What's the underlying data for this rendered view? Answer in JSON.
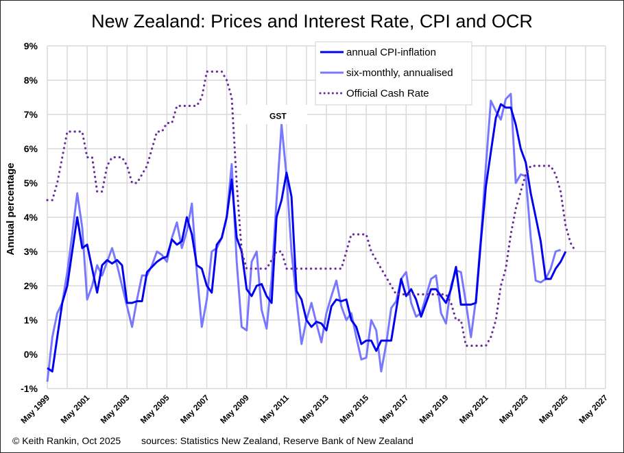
{
  "chart_data": {
    "type": "line",
    "title": "New Zealand: Prices and Interest Rate, CPI and OCR",
    "xlabel": "",
    "ylabel": "Annual percentage",
    "ylim": [
      -1,
      9
    ],
    "xlim": [
      "May 1999",
      "May 2027"
    ],
    "grid": true,
    "legend_position": "top-center",
    "y_ticks": [
      "-1%",
      "0%",
      "1%",
      "2%",
      "3%",
      "4%",
      "5%",
      "6%",
      "7%",
      "8%",
      "9%"
    ],
    "x_ticks": [
      "May 1999",
      "May 2001",
      "May 2003",
      "May 2005",
      "May 2007",
      "May 2009",
      "May 2011",
      "May 2013",
      "May 2015",
      "May 2017",
      "May 2019",
      "May 2021",
      "May 2023",
      "May 2025",
      "May 2027"
    ],
    "x_start_year": 1999.33,
    "x_step_years": 0.25,
    "series": [
      {
        "name": "annual CPI-inflation",
        "color": "#0000ee",
        "style": "solid",
        "values": [
          -0.4,
          -0.5,
          0.5,
          1.5,
          2.0,
          3.0,
          4.0,
          3.1,
          3.2,
          2.5,
          1.8,
          2.6,
          2.75,
          2.65,
          2.75,
          2.6,
          1.5,
          1.5,
          1.55,
          1.55,
          2.4,
          2.55,
          2.7,
          2.8,
          2.85,
          3.35,
          3.2,
          3.3,
          4.0,
          3.5,
          2.6,
          2.5,
          2.0,
          1.8,
          3.2,
          3.4,
          4.0,
          5.1,
          3.4,
          3.0,
          1.9,
          1.7,
          2.0,
          2.05,
          1.7,
          1.5,
          4.0,
          4.5,
          5.3,
          4.6,
          1.85,
          1.6,
          1.0,
          0.8,
          0.95,
          0.9,
          0.7,
          1.4,
          1.6,
          1.55,
          1.6,
          1.0,
          0.8,
          0.3,
          0.4,
          0.4,
          0.1,
          0.4,
          0.4,
          0.4,
          1.3,
          2.2,
          1.7,
          1.9,
          1.6,
          1.1,
          1.5,
          1.9,
          1.9,
          1.7,
          1.5,
          1.9,
          2.55,
          1.45,
          1.45,
          1.45,
          1.5,
          3.3,
          4.9,
          5.9,
          6.9,
          7.3,
          7.2,
          7.2,
          6.7,
          6.0,
          5.6,
          4.7,
          4.0,
          3.3,
          2.2,
          2.2,
          2.5,
          2.7,
          3.0
        ]
      },
      {
        "name": "six-monthly, annualised",
        "color": "#7878ff",
        "style": "solid",
        "values": [
          -0.8,
          0.5,
          1.2,
          1.5,
          2.4,
          3.5,
          4.7,
          3.7,
          1.6,
          2.0,
          2.6,
          2.3,
          2.7,
          3.1,
          2.6,
          2.0,
          1.4,
          0.8,
          1.6,
          2.3,
          2.3,
          2.6,
          3.0,
          2.9,
          2.7,
          3.4,
          3.85,
          3.1,
          3.6,
          4.4,
          2.4,
          0.8,
          1.6,
          3.0,
          3.1,
          3.4,
          4.0,
          5.55,
          2.7,
          0.8,
          0.7,
          2.7,
          3.0,
          1.3,
          0.75,
          2.2,
          4.5,
          6.7,
          5.2,
          3.0,
          1.6,
          0.3,
          1.0,
          1.5,
          0.9,
          0.35,
          1.2,
          1.7,
          2.15,
          1.4,
          1.0,
          1.2,
          0.5,
          -0.15,
          -0.1,
          1.0,
          0.7,
          -0.5,
          0.3,
          1.35,
          1.55,
          2.2,
          2.4,
          1.5,
          1.1,
          1.2,
          1.7,
          2.2,
          2.3,
          1.2,
          0.9,
          2.0,
          2.45,
          2.4,
          1.5,
          0.5,
          1.6,
          3.4,
          5.5,
          7.4,
          7.1,
          6.85,
          7.45,
          7.6,
          5.0,
          5.25,
          5.2,
          3.4,
          2.15,
          2.1,
          2.2,
          2.5,
          3.0,
          3.05
        ]
      },
      {
        "name": "Official Cash Rate",
        "color": "#6a2d9f",
        "style": "dotted",
        "values": [
          4.5,
          4.5,
          5.0,
          5.75,
          6.5,
          6.5,
          6.5,
          6.5,
          5.75,
          5.75,
          4.75,
          4.75,
          5.5,
          5.75,
          5.75,
          5.75,
          5.5,
          5.0,
          5.0,
          5.25,
          5.5,
          6.0,
          6.5,
          6.5,
          6.75,
          6.75,
          7.25,
          7.25,
          7.25,
          7.25,
          7.25,
          7.5,
          8.25,
          8.25,
          8.25,
          8.25,
          8.0,
          7.5,
          5.0,
          3.0,
          2.5,
          2.5,
          2.5,
          2.5,
          2.5,
          2.75,
          3.0,
          3.0,
          2.5,
          2.5,
          2.5,
          2.5,
          2.5,
          2.5,
          2.5,
          2.5,
          2.5,
          2.5,
          2.5,
          2.5,
          3.0,
          3.5,
          3.5,
          3.5,
          3.5,
          3.0,
          2.75,
          2.5,
          2.25,
          2.0,
          1.75,
          1.75,
          1.75,
          1.75,
          1.75,
          1.75,
          1.75,
          1.75,
          1.75,
          1.75,
          1.75,
          1.5,
          1.0,
          1.0,
          0.25,
          0.25,
          0.25,
          0.25,
          0.25,
          0.5,
          1.0,
          2.0,
          2.5,
          3.5,
          4.25,
          4.75,
          5.25,
          5.5,
          5.5,
          5.5,
          5.5,
          5.5,
          5.25,
          4.75,
          3.75,
          3.25,
          3.0
        ]
      }
    ],
    "annotations": [
      {
        "text": "GST",
        "x_year": 2010.9,
        "y": 6.95
      }
    ]
  },
  "footer": {
    "credit": "© Keith Rankin, Oct 2025",
    "sources": "sources: Statistics New Zealand, Reserve Bank of New Zealand"
  }
}
